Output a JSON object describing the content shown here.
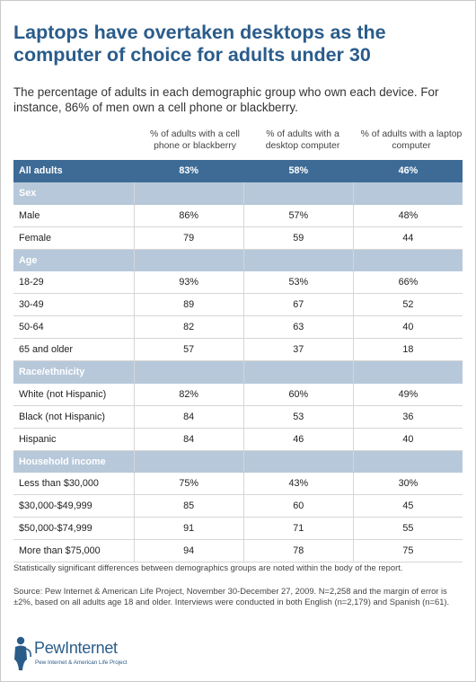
{
  "title": "Laptops have overtaken desktops as the computer of choice for adults under 30",
  "subtitle": "The percentage of adults in each demographic group who own each device. For instance, 86% of men own a cell phone or blackberry.",
  "chart_data": {
    "type": "table",
    "columns": [
      "% of adults with a cell phone or blackberry",
      "% of adults with a desktop computer",
      "% of adults with a laptop computer"
    ],
    "rows": [
      {
        "kind": "all",
        "label": "All adults",
        "values": [
          "83%",
          "58%",
          "46%"
        ]
      },
      {
        "kind": "section",
        "label": "Sex"
      },
      {
        "kind": "data",
        "label": "Male",
        "values": [
          "86%",
          "57%",
          "48%"
        ]
      },
      {
        "kind": "data",
        "label": "Female",
        "values": [
          "79",
          "59",
          "44"
        ]
      },
      {
        "kind": "section",
        "label": "Age"
      },
      {
        "kind": "data",
        "label": "18-29",
        "values": [
          "93%",
          "53%",
          "66%"
        ]
      },
      {
        "kind": "data",
        "label": "30-49",
        "values": [
          "89",
          "67",
          "52"
        ]
      },
      {
        "kind": "data",
        "label": "50-64",
        "values": [
          "82",
          "63",
          "40"
        ]
      },
      {
        "kind": "data",
        "label": "65 and older",
        "values": [
          "57",
          "37",
          "18"
        ]
      },
      {
        "kind": "section",
        "label": "Race/ethnicity"
      },
      {
        "kind": "data",
        "label": "White (not Hispanic)",
        "values": [
          "82%",
          "60%",
          "49%"
        ]
      },
      {
        "kind": "data",
        "label": "Black (not Hispanic)",
        "values": [
          "84",
          "53",
          "36"
        ]
      },
      {
        "kind": "data",
        "label": "Hispanic",
        "values": [
          "84",
          "46",
          "40"
        ]
      },
      {
        "kind": "section",
        "label": "Household income"
      },
      {
        "kind": "data",
        "label": "Less than $30,000",
        "values": [
          "75%",
          "43%",
          "30%"
        ]
      },
      {
        "kind": "data",
        "label": "$30,000-$49,999",
        "values": [
          "85",
          "60",
          "45"
        ]
      },
      {
        "kind": "data",
        "label": "$50,000-$74,999",
        "values": [
          "91",
          "71",
          "55"
        ]
      },
      {
        "kind": "data",
        "label": "More than $75,000",
        "values": [
          "94",
          "78",
          "75"
        ]
      }
    ]
  },
  "note": "Statistically significant differences between demographics groups are noted within the body of the report.",
  "source": "Source: Pew Internet & American Life Project, November 30-December 27, 2009. N=2,258 and the margin of error is ±2%, based on all adults age 18 and older. Interviews were conducted in both English (n=2,179) and Spanish (n=61).",
  "logo": {
    "name": "PewInternet",
    "tagline": "Pew Internet & American Life Project",
    "color": "#2a5c8a"
  },
  "colors": {
    "header_row": "#3d6b96",
    "section_row": "#b7c8da",
    "title": "#2a5c8a"
  }
}
